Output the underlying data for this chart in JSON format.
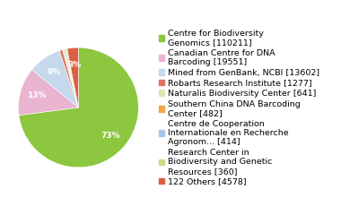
{
  "labels": [
    "Centre for Biodiversity\nGenomics [110211]",
    "Canadian Centre for DNA\nBarcoding [19551]",
    "Mined from GenBank, NCBI [13602]",
    "Robarts Research Institute [1277]",
    "Naturalis Biodiversity Center [641]",
    "Southern China DNA Barcoding\nCenter [482]",
    "Centre de Cooperation\nInternationale en Recherche\nAgronom... [414]",
    "Research Center in\nBiodiversity and Genetic\nResources [360]",
    "122 Others [4578]"
  ],
  "values": [
    110211,
    19551,
    13602,
    1277,
    641,
    482,
    414,
    360,
    4578
  ],
  "colors": [
    "#8dc63f",
    "#e8b4d0",
    "#c5d8ec",
    "#e07060",
    "#dde8b0",
    "#f0a848",
    "#a8c8e8",
    "#c8dc88",
    "#d96040"
  ],
  "background_color": "#ffffff",
  "legend_fontsize": 6.8,
  "autopct_fontsize": 6.5,
  "pct_min_threshold": 2.5
}
